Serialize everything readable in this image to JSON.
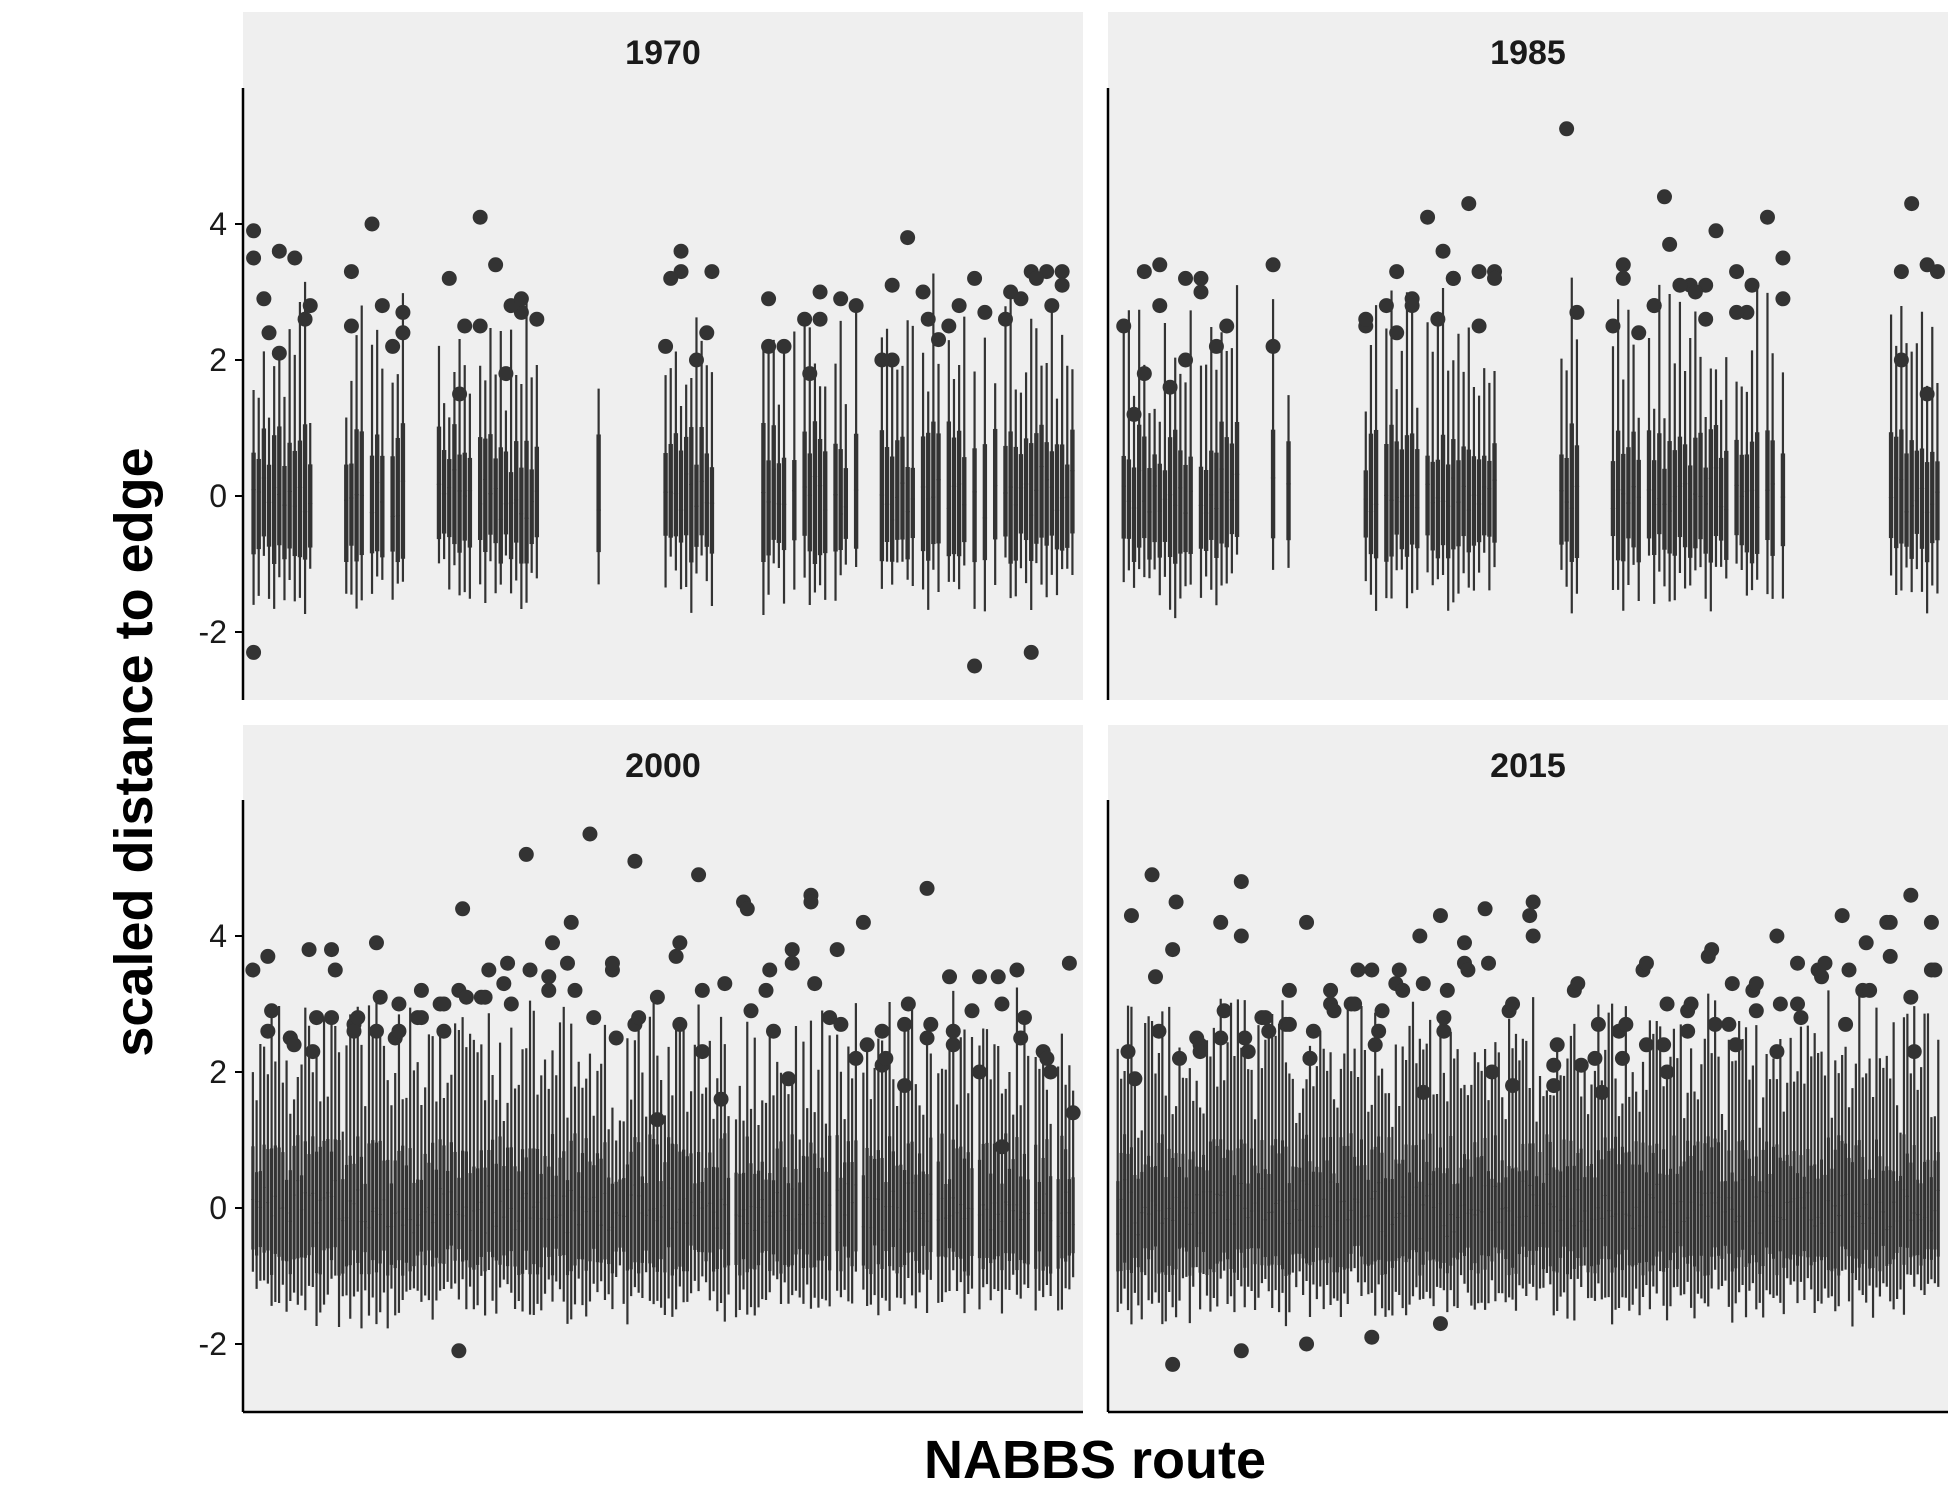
{
  "chart_data": {
    "type": "boxplot",
    "xlabel": "NABBS route",
    "ylabel": "scaled distance to edge",
    "ylim": [
      -3.0,
      6.0
    ],
    "y_ticks": [
      -2,
      0,
      2,
      4
    ],
    "layout": "2x2 facet grid",
    "facets": [
      {
        "label": "1970",
        "route_count": 160,
        "routes_present": "clusters of routes with wide gaps; most boxes span about -1 to 1",
        "box_range_typical": [
          -0.8,
          0.7
        ],
        "whisker_range_typical": [
          -1.3,
          2.5
        ],
        "upper_outliers": [
          3.9,
          3.3,
          3.2,
          3.0,
          2.8,
          2.6,
          2.4,
          2.2,
          1.8,
          1.5,
          2.8,
          2.6,
          2.9,
          3.3,
          2.6,
          2.3,
          2.0,
          3.0,
          2.9,
          3.3,
          2.7,
          2.5,
          2.4,
          3.3,
          3.6,
          3.3,
          2.9,
          2.8,
          3.8,
          2.9,
          2.2,
          2.0,
          2.6,
          3.4,
          3.2,
          4.0,
          3.5,
          3.5,
          3.2,
          2.7,
          2.6,
          2.0,
          1.8,
          3.3,
          3.2,
          2.8,
          2.5,
          2.2,
          2.8,
          2.4,
          2.8,
          3.0,
          2.5,
          3.1,
          2.6,
          2.2,
          3.6,
          2.9,
          4.1,
          2.7,
          2.5,
          2.1,
          3.1
        ],
        "lower_outliers": [
          -2.3,
          -2.3,
          -2.5
        ]
      },
      {
        "label": "1985",
        "route_count": 160,
        "routes_present": "clusters of routes with wide gaps; most boxes span about -1 to 1",
        "box_range_typical": [
          -0.8,
          0.7
        ],
        "whisker_range_typical": [
          -1.3,
          2.3
        ],
        "upper_outliers": [
          3.2,
          3.3,
          3.4,
          3.5,
          3.3,
          3.1,
          2.8,
          2.7,
          2.5,
          2.6,
          2.4,
          2.2,
          3.0,
          3.4,
          3.3,
          3.3,
          2.7,
          3.1,
          4.4,
          3.4,
          3.3,
          3.2,
          2.9,
          2.5,
          2.2,
          1.6,
          1.2,
          4.3,
          4.1,
          3.9,
          3.1,
          2.4,
          5.4,
          4.3,
          4.1,
          2.8,
          2.5,
          2.0,
          1.8,
          1.5,
          2.9,
          2.7,
          3.0,
          2.8,
          2.5,
          3.3,
          3.6,
          3.3,
          3.4,
          3.2,
          2.8,
          2.5,
          2.0,
          3.1,
          2.6,
          3.7,
          3.2,
          3.2,
          3.2,
          2.8,
          2.6
        ],
        "lower_outliers": []
      },
      {
        "label": "2000",
        "route_count": 220,
        "routes_present": "nearly continuous routes; most boxes span about -1 to 1",
        "box_range_typical": [
          -0.8,
          0.7
        ],
        "whisker_range_typical": [
          -1.4,
          2.4
        ],
        "upper_outliers": [
          3.2,
          2.5,
          3.8,
          3.7,
          3.5,
          3.4,
          2.6,
          4.6,
          4.5,
          3.7,
          3.5,
          3.2,
          3.1,
          2.8,
          2.7,
          2.5,
          2.3,
          2.9,
          2.7,
          2.8,
          3.2,
          4.9,
          5.1,
          3.6,
          3.3,
          3.0,
          3.9,
          3.8,
          3.6,
          3.4,
          2.5,
          2.2,
          1.9,
          1.6,
          1.3,
          5.5,
          5.2,
          4.4,
          3.0,
          2.8,
          2.6,
          2.5,
          2.4,
          2.1,
          4.5,
          4.4,
          3.9,
          3.6,
          3.4,
          3.1,
          2.8,
          2.6,
          2.5,
          2.2,
          2.0,
          1.8,
          3.8,
          3.5,
          3.2,
          2.7,
          4.2,
          3.6,
          3.0,
          2.6,
          2.3,
          1.4,
          0.9,
          4.7,
          4.2,
          3.8,
          3.3,
          3.1,
          2.8,
          3.5,
          3.1,
          2.6,
          3.5,
          2.9,
          2.8,
          2.6,
          2.2,
          3.3,
          2.9,
          2.7,
          2.5,
          3.9,
          3.5,
          3.2,
          2.8,
          2.4,
          2.0,
          3.4,
          3.0,
          2.7,
          2.6,
          2.3,
          2.8,
          3.2,
          3.0,
          2.6,
          3.1,
          2.8,
          3.5,
          3.0,
          2.7,
          2.4,
          3.6
        ],
        "lower_outliers": [
          -2.1
        ]
      },
      {
        "label": "2015",
        "route_count": 240,
        "routes_present": "continuous routes; most boxes span about -1 to 1",
        "box_range_typical": [
          -0.8,
          0.7
        ],
        "whisker_range_typical": [
          -1.4,
          2.5
        ],
        "upper_outliers": [
          4.3,
          3.5,
          4.2,
          4.0,
          3.8,
          3.5,
          3.2,
          3.0,
          2.7,
          2.4,
          2.2,
          4.3,
          3.6,
          3.3,
          3.0,
          2.8,
          2.5,
          2.3,
          4.2,
          3.5,
          3.2,
          2.9,
          2.6,
          2.1,
          4.4,
          4.0,
          3.0,
          2.7,
          2.5,
          4.9,
          4.6,
          4.3,
          4.0,
          3.7,
          3.5,
          3.2,
          2.9,
          2.6,
          2.4,
          2.2,
          4.8,
          4.5,
          4.2,
          3.9,
          3.6,
          3.3,
          3.0,
          2.7,
          4.5,
          3.9,
          3.5,
          3.2,
          2.8,
          2.4,
          4.3,
          3.7,
          3.4,
          2.9,
          2.6,
          2.2,
          1.8,
          3.6,
          3.3,
          3.0,
          2.7,
          4.2,
          3.4,
          3.1,
          2.7,
          2.3,
          3.8,
          3.6,
          3.3,
          3.0,
          2.8,
          2.6,
          2.2,
          2.5,
          2.2,
          3.5,
          3.2,
          2.8,
          2.4,
          2.0,
          1.7,
          4.0,
          3.5,
          3.2,
          2.9,
          2.6,
          2.3,
          1.9,
          4.2,
          3.6,
          3.3,
          3.0,
          2.7,
          2.4,
          2.0,
          1.7,
          3.5,
          3.2,
          2.9,
          2.6,
          2.3,
          3.5,
          3.0,
          2.7,
          2.4,
          2.1,
          1.8,
          3.2,
          2.9,
          2.6,
          2.3
        ],
        "lower_outliers": [
          -1.7,
          -1.9,
          -2.0,
          -2.1,
          -2.3
        ]
      }
    ]
  }
}
